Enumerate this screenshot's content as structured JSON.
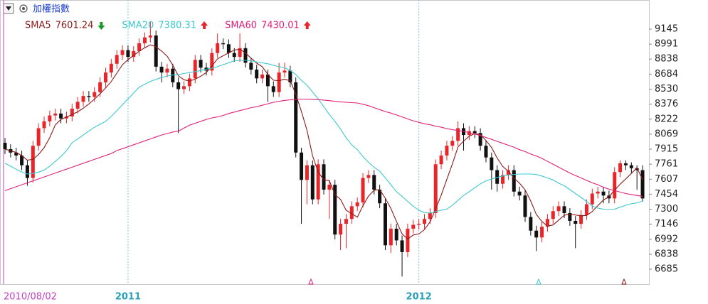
{
  "chart_data": {
    "type": "candlestick",
    "title": "加權指數",
    "categories": [
      "2010/08/02",
      null,
      null,
      null,
      null,
      null,
      null,
      null,
      null,
      null,
      null,
      null,
      null,
      null,
      null,
      null,
      null,
      null,
      null,
      null,
      null,
      null,
      "2011",
      null,
      null,
      null,
      null,
      null,
      null,
      null,
      null,
      null,
      null,
      null,
      null,
      null,
      null,
      null,
      null,
      null,
      null,
      null,
      null,
      null,
      null,
      null,
      null,
      null,
      null,
      null,
      null,
      null,
      null,
      null,
      null,
      null,
      null,
      null,
      null,
      null,
      null,
      null,
      null,
      null,
      null,
      null,
      null,
      null,
      null,
      null,
      null,
      null,
      null,
      null,
      "2012",
      null,
      null,
      null,
      null,
      null,
      null,
      null,
      null,
      null,
      null,
      null,
      null,
      null,
      null,
      null,
      null,
      null,
      null,
      null,
      null,
      null,
      null,
      null,
      null,
      null,
      null,
      null,
      null,
      null,
      null,
      null,
      null,
      null,
      null,
      null,
      null,
      null,
      null,
      null,
      null
    ],
    "open": [
      7980,
      7915,
      7880,
      7850,
      7750,
      7620,
      7950,
      8130,
      8200,
      8260,
      8280,
      8230,
      8250,
      8330,
      8400,
      8460,
      8450,
      8500,
      8600,
      8700,
      8790,
      8880,
      8930,
      8860,
      8920,
      9000,
      9060,
      9080,
      8760,
      8700,
      8740,
      8600,
      8530,
      8560,
      8640,
      8830,
      8750,
      8720,
      8900,
      9000,
      8990,
      8900,
      8860,
      8950,
      8800,
      8730,
      8640,
      8680,
      8560,
      8500,
      8700,
      8720,
      8600,
      7880,
      7600,
      7750,
      7400,
      7760,
      7500,
      7550,
      7040,
      7150,
      7200,
      7330,
      7370,
      7620,
      7650,
      7500,
      7360,
      6930,
      7100,
      6980,
      6860,
      7100,
      7140,
      7150,
      7200,
      7260,
      7760,
      7850,
      7950,
      8000,
      8130,
      8060,
      8100,
      8080,
      7950,
      7830,
      7700,
      7560,
      7650,
      7700,
      7480,
      7440,
      7220,
      7080,
      7010,
      7120,
      7200,
      7280,
      7330,
      7260,
      7180,
      7150,
      7240,
      7350,
      7460,
      7480,
      7440,
      7410,
      7680,
      7770,
      7750,
      7720,
      7700
    ],
    "high": [
      8030,
      7965,
      7930,
      7900,
      7800,
      8000,
      8180,
      8250,
      8310,
      8330,
      8330,
      8300,
      8380,
      8450,
      8510,
      8510,
      8550,
      8650,
      8750,
      8840,
      8930,
      8980,
      8980,
      8970,
      9050,
      9110,
      9220,
      9130,
      8810,
      8790,
      8790,
      8650,
      8610,
      8690,
      8880,
      8880,
      8800,
      8950,
      9100,
      9050,
      9040,
      8950,
      9100,
      9000,
      8850,
      8780,
      8730,
      8730,
      8610,
      8800,
      8800,
      8770,
      8650,
      7930,
      7800,
      7800,
      7810,
      7810,
      7600,
      7600,
      7200,
      7250,
      7380,
      7420,
      7670,
      7700,
      7700,
      7550,
      7410,
      7150,
      7150,
      7030,
      7150,
      7190,
      7200,
      7250,
      7310,
      7810,
      7900,
      8000,
      8050,
      8200,
      8180,
      8150,
      8150,
      8130,
      8000,
      7880,
      7750,
      7700,
      7750,
      7750,
      7530,
      7490,
      7270,
      7130,
      7170,
      7250,
      7330,
      7380,
      7380,
      7310,
      7230,
      7290,
      7400,
      7510,
      7530,
      7530,
      7490,
      7730,
      7800,
      7800,
      7780,
      7750,
      7750
    ],
    "low": [
      7865,
      7830,
      7800,
      7700,
      7540,
      7570,
      7900,
      8080,
      8150,
      8210,
      8180,
      8180,
      8200,
      8280,
      8350,
      8400,
      8400,
      8450,
      8550,
      8650,
      8740,
      8830,
      8810,
      8810,
      8870,
      8950,
      9010,
      8710,
      8600,
      8650,
      8550,
      8080,
      8480,
      8510,
      8590,
      8700,
      8670,
      8670,
      8850,
      8940,
      8850,
      8810,
      8810,
      8750,
      8680,
      8590,
      8590,
      8400,
      8450,
      8450,
      8650,
      8550,
      7830,
      7150,
      7350,
      7350,
      7350,
      7450,
      7200,
      6990,
      6880,
      6900,
      7150,
      7280,
      7320,
      7570,
      7450,
      7310,
      6880,
      6850,
      6930,
      6610,
      6810,
      7050,
      7090,
      7100,
      7150,
      7210,
      7710,
      7800,
      7900,
      7950,
      7900,
      8010,
      8030,
      7900,
      7780,
      7500,
      7480,
      7510,
      7600,
      7430,
      7390,
      7170,
      7030,
      6870,
      6960,
      7070,
      7150,
      7230,
      7210,
      7130,
      6900,
      7100,
      7190,
      7300,
      7410,
      7360,
      7360,
      7360,
      7630,
      7700,
      7670,
      7500,
      7380
    ],
    "close": [
      7915,
      7880,
      7850,
      7750,
      7620,
      7950,
      8130,
      8200,
      8260,
      8280,
      8230,
      8250,
      8330,
      8400,
      8460,
      8450,
      8500,
      8600,
      8700,
      8790,
      8880,
      8930,
      8860,
      8920,
      9000,
      9060,
      9080,
      8760,
      8700,
      8740,
      8600,
      8530,
      8560,
      8640,
      8830,
      8750,
      8720,
      8900,
      9000,
      8990,
      8900,
      8860,
      8950,
      8800,
      8730,
      8640,
      8680,
      8560,
      8500,
      8700,
      8720,
      8600,
      7880,
      7600,
      7750,
      7400,
      7760,
      7500,
      7550,
      7040,
      7150,
      7200,
      7330,
      7370,
      7620,
      7650,
      7500,
      7360,
      6930,
      7100,
      6980,
      6860,
      7100,
      7140,
      7150,
      7200,
      7260,
      7760,
      7850,
      7950,
      8000,
      8130,
      8060,
      8100,
      8080,
      7950,
      7830,
      7700,
      7560,
      7650,
      7700,
      7480,
      7440,
      7220,
      7080,
      7010,
      7120,
      7200,
      7280,
      7330,
      7260,
      7180,
      7150,
      7240,
      7350,
      7460,
      7480,
      7440,
      7410,
      7680,
      7770,
      7750,
      7720,
      7700,
      7410
    ],
    "up_color": "#e8262a",
    "down_color": "#111111",
    "series": [
      {
        "name": "SMA5",
        "color": "#8b1a1a",
        "trend": "down",
        "values": [
          7915,
          7898,
          7882,
          7849,
          7803,
          7810,
          7860,
          7930,
          8032,
          8164,
          8220,
          8244,
          8270,
          8298,
          8334,
          8378,
          8428,
          8482,
          8542,
          8608,
          8694,
          8780,
          8832,
          8876,
          8918,
          8954,
          8984,
          8964,
          8920,
          8868,
          8776,
          8666,
          8626,
          8614,
          8632,
          8662,
          8700,
          8768,
          8840,
          8872,
          8902,
          8930,
          8940,
          8900,
          8848,
          8796,
          8760,
          8682,
          8622,
          8616,
          8632,
          8616,
          8480,
          8300,
          8110,
          7846,
          7678,
          7602,
          7592,
          7450,
          7400,
          7288,
          7254,
          7218,
          7334,
          7434,
          7494,
          7500,
          7412,
          7308,
          7174,
          7046,
          6994,
          7036,
          7046,
          7090,
          7170,
          7302,
          7444,
          7604,
          7764,
          7938,
          7998,
          8048,
          8074,
          8064,
          8004,
          7932,
          7824,
          7738,
          7688,
          7618,
          7566,
          7498,
          7384,
          7246,
          7174,
          7126,
          7138,
          7188,
          7238,
          7250,
          7240,
          7232,
          7236,
          7276,
          7336,
          7394,
          7428,
          7494,
          7556,
          7610,
          7666,
          7724,
          7601.24
        ]
      },
      {
        "name": "SMA20",
        "color": "#3cc8d0",
        "trend": "up",
        "values": [
          7770,
          7740,
          7710,
          7680,
          7660,
          7665,
          7680,
          7700,
          7740,
          7790,
          7840,
          7900,
          7980,
          8020,
          8060,
          8100,
          8140,
          8170,
          8200,
          8250,
          8310,
          8370,
          8430,
          8490,
          8550,
          8580,
          8610,
          8630,
          8650,
          8665,
          8675,
          8680,
          8690,
          8700,
          8710,
          8720,
          8735,
          8745,
          8760,
          8780,
          8800,
          8820,
          8825,
          8825,
          8820,
          8810,
          8800,
          8790,
          8775,
          8760,
          8750,
          8720,
          8680,
          8620,
          8570,
          8500,
          8430,
          8350,
          8270,
          8200,
          8120,
          8030,
          7960,
          7910,
          7840,
          7780,
          7730,
          7690,
          7620,
          7550,
          7480,
          7430,
          7380,
          7330,
          7290,
          7265,
          7260,
          7275,
          7290,
          7300,
          7340,
          7390,
          7440,
          7478,
          7520,
          7560,
          7590,
          7610,
          7625,
          7640,
          7650,
          7655,
          7660,
          7660,
          7660,
          7655,
          7640,
          7620,
          7600,
          7566,
          7540,
          7500,
          7460,
          7420,
          7380,
          7333,
          7310,
          7300,
          7296,
          7300,
          7320,
          7340,
          7355,
          7365,
          7380.31
        ]
      },
      {
        "name": "SMA60",
        "color": "#e0207a",
        "trend": "up",
        "values": [
          7490,
          7510,
          7530,
          7550,
          7570,
          7590,
          7610,
          7630,
          7650,
          7670,
          7690,
          7710,
          7730,
          7750,
          7770,
          7790,
          7810,
          7830,
          7850,
          7870,
          7900,
          7920,
          7940,
          7960,
          7980,
          8000,
          8020,
          8040,
          8060,
          8075,
          8090,
          8100,
          8130,
          8160,
          8180,
          8200,
          8220,
          8235,
          8245,
          8260,
          8280,
          8295,
          8310,
          8325,
          8340,
          8350,
          8365,
          8380,
          8395,
          8405,
          8415,
          8420,
          8425,
          8428,
          8428,
          8425,
          8422,
          8418,
          8412,
          8405,
          8400,
          8395,
          8392,
          8388,
          8375,
          8360,
          8340,
          8320,
          8300,
          8285,
          8265,
          8245,
          8225,
          8205,
          8190,
          8175,
          8165,
          8150,
          8140,
          8125,
          8115,
          8105,
          8097,
          8085,
          8070,
          8055,
          8035,
          8015,
          7995,
          7975,
          7955,
          7935,
          7910,
          7890,
          7865,
          7845,
          7820,
          7790,
          7760,
          7730,
          7700,
          7670,
          7645,
          7620,
          7595,
          7570,
          7550,
          7525,
          7505,
          7490,
          7475,
          7460,
          7450,
          7440,
          7430.01
        ]
      }
    ],
    "ylim": [
      6532,
      9407
    ],
    "yticks": [
      6685,
      6838,
      6992,
      7146,
      7300,
      7454,
      7607,
      7761,
      7915,
      8069,
      8222,
      8376,
      8530,
      8684,
      8838,
      8991,
      9145
    ]
  }
}
